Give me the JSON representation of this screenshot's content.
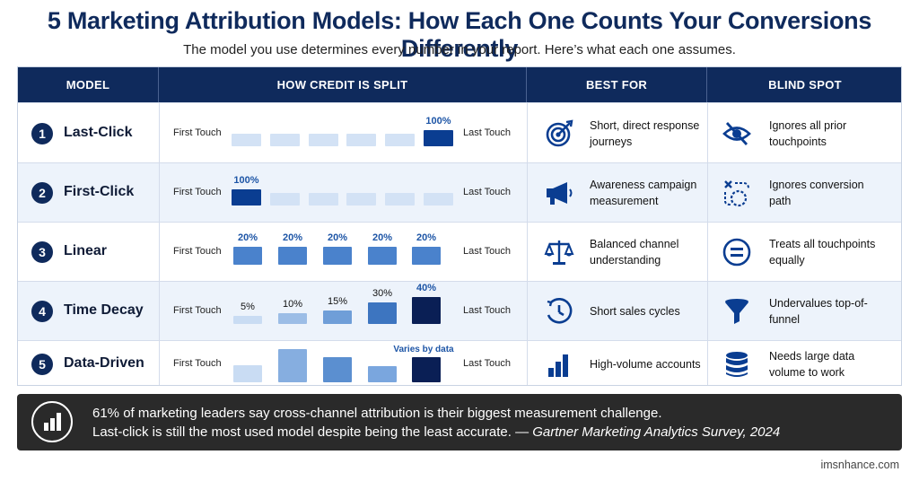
{
  "title": "5 Marketing Attribution Models: How Each One Counts Your Conversions Differently",
  "subtitle": "The model you use determines every number in your report. Here’s what each one assumes.",
  "columns": [
    "MODEL",
    "HOW CREDIT IS SPLIT",
    "BEST FOR",
    "BLIND SPOT"
  ],
  "first_touch": "First Touch",
  "last_touch": "Last Touch",
  "models": [
    {
      "num": "1",
      "name": "Last-Click",
      "credit": [
        0,
        0,
        0,
        0,
        0,
        1.0
      ],
      "labels": [
        "",
        "",
        "",
        "",
        "",
        "100%"
      ],
      "best_icon": "target-icon",
      "best_for": "Short, direct response journeys",
      "blind_icon": "eye-slash-icon",
      "blind_spot": "Ignores all prior touchpoints"
    },
    {
      "num": "2",
      "name": "First-Click",
      "credit": [
        1.0,
        0,
        0,
        0,
        0,
        0
      ],
      "labels": [
        "100%",
        "",
        "",
        "",
        "",
        ""
      ],
      "best_icon": "megaphone-icon",
      "best_for": "Awareness campaign measurement",
      "blind_icon": "broken-path-icon",
      "blind_spot": "Ignores conversion path"
    },
    {
      "num": "3",
      "name": "Linear",
      "credit": [
        0.2,
        0.2,
        0.2,
        0.2,
        0.2
      ],
      "labels": [
        "20%",
        "20%",
        "20%",
        "20%",
        "20%"
      ],
      "best_icon": "scale-icon",
      "best_for": "Balanced channel understanding",
      "blind_icon": "equals-icon",
      "blind_spot": "Treats all touchpoints equally"
    },
    {
      "num": "4",
      "name": "Time Decay",
      "credit": [
        0.05,
        0.1,
        0.15,
        0.3,
        0.4
      ],
      "labels": [
        "5%",
        "10%",
        "15%",
        "30%",
        "40%"
      ],
      "best_icon": "clock-icon",
      "best_for": "Short sales cycles",
      "blind_icon": "funnel-icon",
      "blind_spot": "Undervalues top-of-funnel"
    },
    {
      "num": "5",
      "name": "Data-Driven",
      "credit": [
        0.15,
        0.35,
        0.25,
        0.13,
        0.25
      ],
      "labels": [
        "",
        "",
        "",
        "",
        ""
      ],
      "note": "Varies by data",
      "best_icon": "bar-chart-icon",
      "best_for": "High-volume accounts",
      "blind_icon": "database-icon",
      "blind_spot": "Needs large data volume to work"
    }
  ],
  "footer": {
    "icon": "bar-chart-icon",
    "line1": "61% of marketing leaders say cross-channel attribution is their biggest measurement challenge.",
    "line2_text": "Last-click is still the most used model despite being the least accurate. — ",
    "line2_source": "Gartner Marketing Analytics Survey, 2024"
  },
  "brand": "imsnhance.com",
  "colors": {
    "navy": "#0f2a5c",
    "dark_blue": "#0a3d91",
    "mid_blue": "#4a82cc",
    "light_blue": "#d3e2f5",
    "footer": "#2a2a2a"
  }
}
